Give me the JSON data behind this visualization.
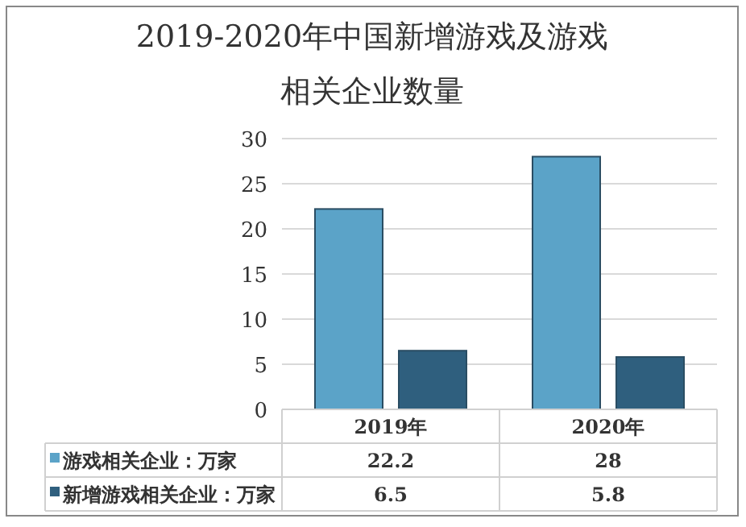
{
  "chart_data": {
    "type": "bar",
    "title": "2019-2020年中国新增游戏及游戏相关企业数量",
    "categories": [
      "2019年",
      "2020年"
    ],
    "series": [
      {
        "name": "游戏相关企业：万家",
        "color": "#5ba3c8",
        "values": [
          22.2,
          28
        ]
      },
      {
        "name": "新增游戏相关企业：万家",
        "color": "#2f5f7e",
        "values": [
          6.5,
          5.8
        ]
      }
    ],
    "ylim": [
      0,
      30
    ],
    "yticks": [
      0,
      5,
      10,
      15,
      20,
      25,
      30
    ],
    "grid": "y",
    "legend": "bottom",
    "data_labels": true
  }
}
